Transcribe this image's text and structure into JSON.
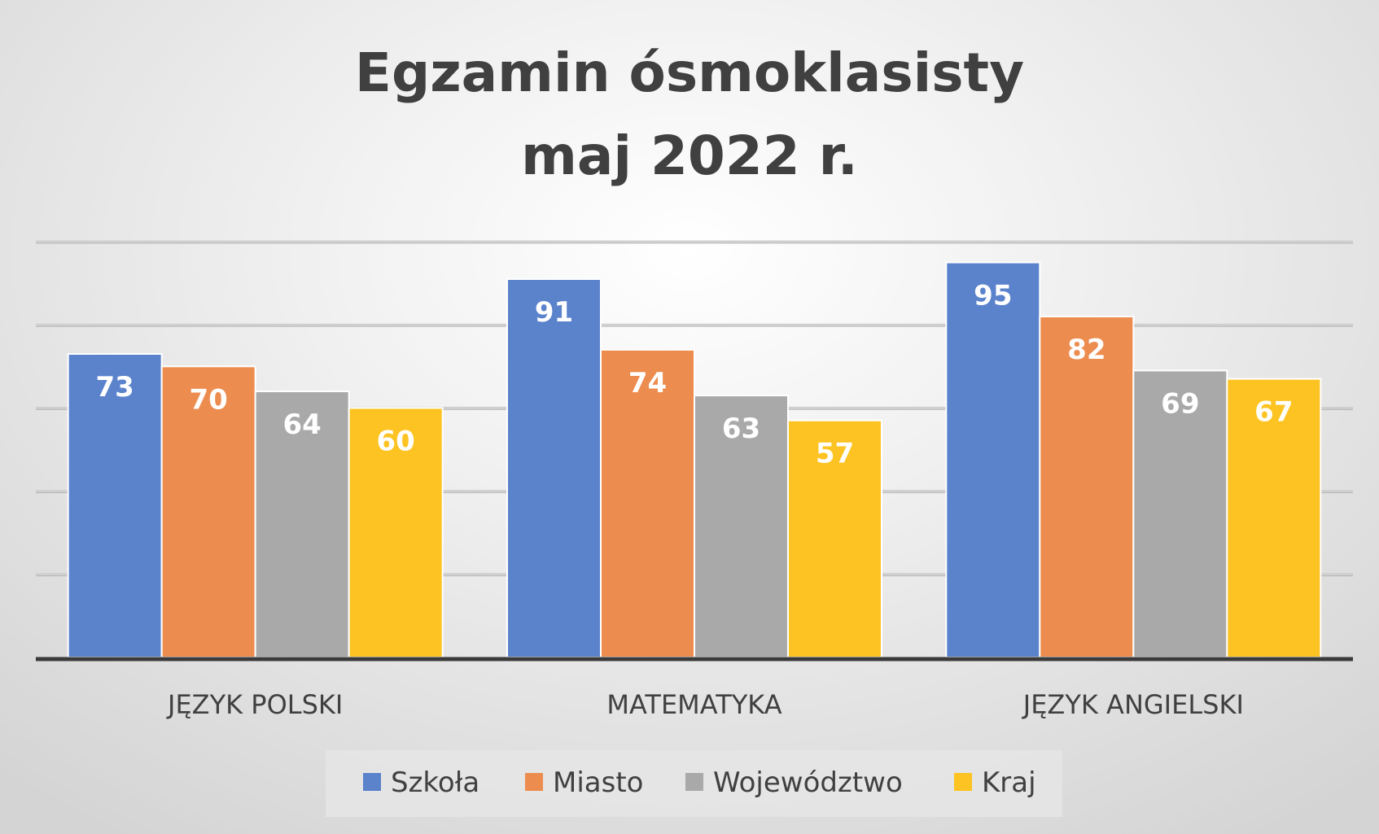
{
  "chart_data": {
    "type": "bar",
    "title_lines": [
      "Egzamin ósmoklasisty",
      "maj 2022 r."
    ],
    "categories": [
      "JĘZYK POLSKI",
      "MATEMATYKA",
      "JĘZYK ANGIELSKI"
    ],
    "series": [
      {
        "name": "Szkoła",
        "color": "#5b83cc",
        "values": [
          73,
          91,
          95
        ]
      },
      {
        "name": "Miasto",
        "color": "#ed8c4f",
        "values": [
          70,
          74,
          82
        ]
      },
      {
        "name": "Województwo",
        "color": "#a9a9a9",
        "values": [
          64,
          63,
          69
        ]
      },
      {
        "name": "Kraj",
        "color": "#fdc322",
        "values": [
          60,
          57,
          67
        ]
      }
    ],
    "ylim": [
      0,
      100
    ],
    "gridlines": [
      20,
      40,
      60,
      80,
      100
    ],
    "grid": true,
    "legend_position": "bottom",
    "data_labels": true
  }
}
